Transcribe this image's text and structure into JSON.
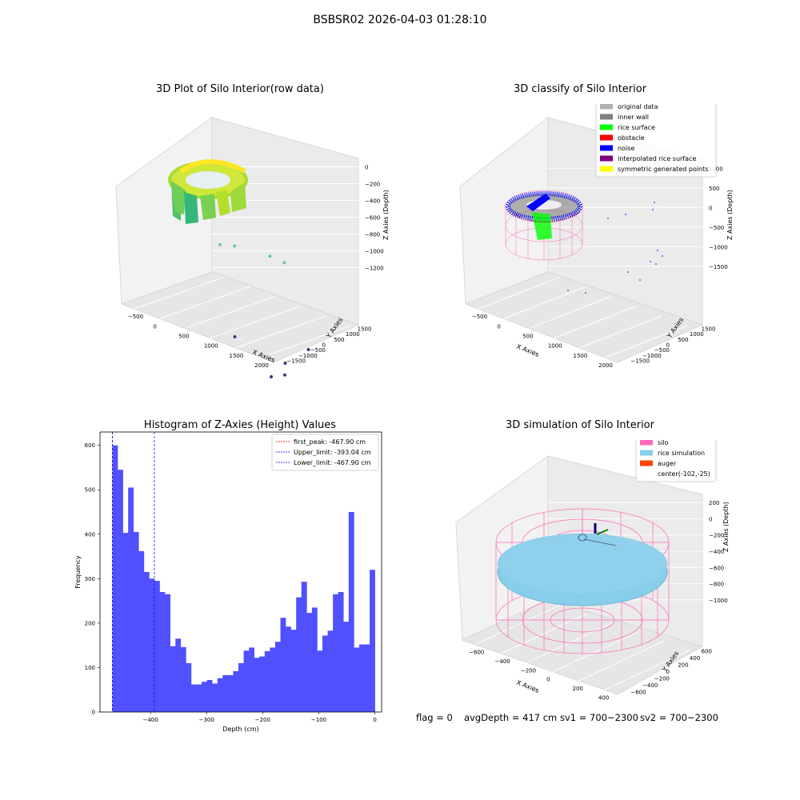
{
  "figure": {
    "suptitle": "BSBSR02 2026-04-03 01:28:10",
    "status": {
      "flag": "flag = 0",
      "avg_depth": "avgDepth = 417 cm",
      "sv1": "sv1 = 700~2300",
      "sv2": "sv2 = 700~2300"
    }
  },
  "colors": {
    "histogram_bar": "#5050ff",
    "peak_line": "#ff0000",
    "limit_line": "#0000ff",
    "silo_wire": "#ff69b4",
    "rice_surface": "#87ceeb",
    "auger": "#ff4500",
    "noise": "#0000ff",
    "rice_points": "#00ff00",
    "inner_wall": "#808080"
  },
  "chart_data": [
    {
      "type": "scatter",
      "title": "3D Plot of Silo Interior(row data)",
      "xlabel": "X Axies",
      "ylabel": "Y Axies",
      "zlabel": "Z Axies (Depth)",
      "xticks": [
        "−500",
        "0",
        "500",
        "1000",
        "1500",
        "2000"
      ],
      "yticks": [
        "−1500",
        "−1000",
        "−500",
        "0",
        "500",
        "1000",
        "1500"
      ],
      "zticks": [
        "0",
        "−200",
        "−400",
        "−600",
        "−800",
        "−1000",
        "−1200"
      ],
      "colormap": "viridis (by depth)",
      "outliers": [
        {
          "x": 600,
          "y": 400,
          "z": -480
        },
        {
          "x": 750,
          "y": 600,
          "z": -500
        },
        {
          "x": 1150,
          "y": 900,
          "z": -560
        },
        {
          "x": 1300,
          "y": 1100,
          "z": -620
        },
        {
          "x": 900,
          "y": -100,
          "z": -1050
        },
        {
          "x": 1700,
          "y": 700,
          "z": -1150
        },
        {
          "x": 1500,
          "y": 200,
          "z": -1200
        },
        {
          "x": 1400,
          "y": -200,
          "z": -1250
        },
        {
          "x": 1600,
          "y": -300,
          "z": -1180
        },
        {
          "x": 1200,
          "y": -900,
          "z": -1260
        },
        {
          "x": 1000,
          "y": -1100,
          "z": -1250
        }
      ]
    },
    {
      "type": "scatter",
      "title": "3D classify of Silo Interior",
      "xlabel": "X Axies",
      "ylabel": "Y Axies",
      "zlabel": "Z Axies (Depth)",
      "xticks": [
        "−500",
        "0",
        "500",
        "1000",
        "1500",
        "2000"
      ],
      "yticks": [
        "−1500",
        "−1000",
        "−500",
        "0",
        "500",
        "1000",
        "1500"
      ],
      "zticks": [
        "1000",
        "500",
        "0",
        "−500",
        "−1000",
        "−1500"
      ],
      "legend": [
        {
          "label": "original data",
          "color": "#b0b0b0"
        },
        {
          "label": "inner wall",
          "color": "#808080"
        },
        {
          "label": "rice surface",
          "color": "#00ff00"
        },
        {
          "label": "obstacle",
          "color": "#ff0000"
        },
        {
          "label": "noise",
          "color": "#0000ff"
        },
        {
          "label": "interpolated rice surface",
          "color": "#800080"
        },
        {
          "label": "symmetric generated points",
          "color": "#ffff00"
        }
      ],
      "legend_position": "top-right"
    },
    {
      "type": "bar",
      "title": "Histogram of Z-Axies (Height) Values",
      "xlabel": "Depth (cm)",
      "ylabel": "Frequency",
      "xlim": [
        -490,
        12
      ],
      "ylim": [
        0,
        630
      ],
      "xticks": [
        -400,
        -300,
        -200,
        -100,
        0
      ],
      "xtick_labels": [
        "−400",
        "−300",
        "−200",
        "−100",
        "0"
      ],
      "yticks": [
        0,
        100,
        200,
        300,
        400,
        500,
        600
      ],
      "bin_start": -467.9,
      "bin_width": 9.36,
      "values": [
        600,
        545,
        403,
        505,
        405,
        362,
        315,
        300,
        295,
        270,
        265,
        148,
        165,
        146,
        110,
        62,
        62,
        68,
        72,
        64,
        76,
        83,
        83,
        92,
        110,
        138,
        145,
        122,
        125,
        137,
        145,
        158,
        212,
        192,
        185,
        258,
        293,
        223,
        235,
        138,
        172,
        183,
        265,
        270,
        203,
        450,
        145,
        152,
        152,
        320
      ],
      "vlines": [
        {
          "x": -467.9,
          "style": "dashed",
          "color": "#ff0000"
        },
        {
          "x": -393.04,
          "style": "dashed",
          "color": "#0000ff"
        },
        {
          "x": -467.9,
          "style": "dashed",
          "color": "#0000ff"
        }
      ],
      "legend": [
        {
          "label": "first_peak: -467.90 cm",
          "color": "#ff0000"
        },
        {
          "label": "Upper_limit: -393.04 cm",
          "color": "#0000ff"
        },
        {
          "label": "Lower_limit: -467.90 cm",
          "color": "#0000ff"
        }
      ],
      "legend_position": "top-right"
    },
    {
      "type": "scatter",
      "title": "3D simulation of Silo Interior",
      "xlabel": "X Axies",
      "ylabel": "Y Axies",
      "zlabel": "Z Axies (Depth)",
      "xticks": [
        "−600",
        "−400",
        "−200",
        "0",
        "200",
        "400"
      ],
      "yticks": [
        "−600",
        "−400",
        "−200",
        "0",
        "200",
        "400",
        "600"
      ],
      "zticks": [
        "200",
        "0",
        "−200",
        "−400",
        "−600",
        "−800",
        "−1000"
      ],
      "legend": [
        {
          "label": "silo",
          "color": "#ff69b4"
        },
        {
          "label": "rice simulation",
          "color": "#87ceeb"
        },
        {
          "label": "auger",
          "color": "#ff4500"
        },
        {
          "label": "center(-102,-25)",
          "color": ""
        }
      ],
      "legend_position": "top-right"
    }
  ]
}
